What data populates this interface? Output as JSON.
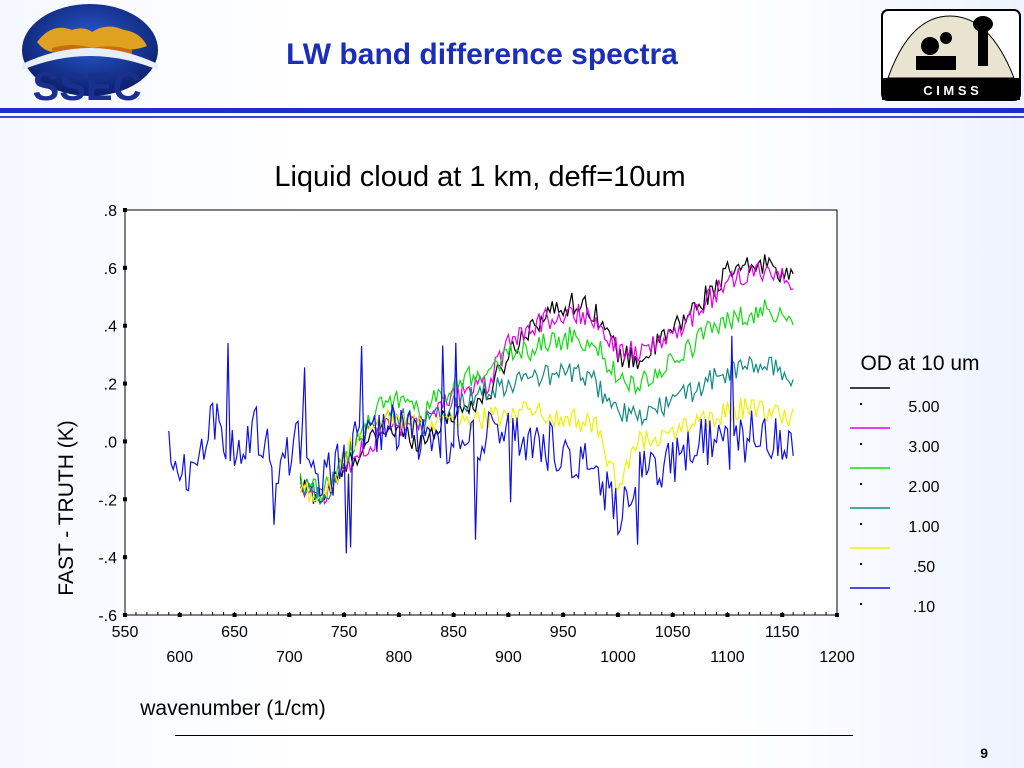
{
  "header": {
    "title": "LW band difference spectra",
    "ssec_logo_text": "SSEC",
    "cimss_logo_text": "C I M S S"
  },
  "footer": {
    "page_number": "9"
  },
  "colors": {
    "title": "#1a2eb8",
    "rule": "#1f2ccf",
    "od_5": "#000000",
    "od_3": "#e600e6",
    "od_2": "#10dd10",
    "od_1": "#138a84",
    "od_05": "#f0f000",
    "od_01": "#1010e0"
  },
  "chart_data": {
    "type": "line",
    "title": "Liquid cloud at 1 km, deff=10um",
    "xlabel": "wavenumber (1/cm)",
    "ylabel": "FAST - TRUTH (K)",
    "xlim": [
      550,
      1200
    ],
    "ylim": [
      -0.6,
      0.8
    ],
    "x_ticks_top_row": [
      "550",
      "650",
      "750",
      "850",
      "950",
      "1050",
      "1150"
    ],
    "x_ticks_bottom_row": [
      "600",
      "700",
      "800",
      "900",
      "1000",
      "1100",
      "1200"
    ],
    "y_ticks": [
      ".8",
      ".6",
      ".4",
      ".2",
      ".0",
      "-.2",
      "-.4",
      "-.6"
    ],
    "legend_title": "OD at 10 um",
    "legend_placement": "right",
    "series": [
      {
        "name": "5.00",
        "color": "#000000",
        "start": 710,
        "x": [
          710,
          730,
          760,
          790,
          820,
          850,
          880,
          900,
          920,
          940,
          960,
          980,
          1000,
          1020,
          1040,
          1060,
          1080,
          1100,
          1120,
          1140,
          1160
        ],
        "y": [
          -0.15,
          -0.2,
          -0.05,
          0.05,
          0.0,
          0.1,
          0.15,
          0.3,
          0.4,
          0.45,
          0.48,
          0.45,
          0.3,
          0.28,
          0.35,
          0.42,
          0.5,
          0.58,
          0.6,
          0.62,
          0.55
        ]
      },
      {
        "name": "3.00",
        "color": "#e600e6",
        "start": 710,
        "x": [
          710,
          730,
          760,
          790,
          820,
          850,
          880,
          900,
          920,
          940,
          960,
          980,
          1000,
          1020,
          1040,
          1060,
          1080,
          1100,
          1120,
          1140,
          1160
        ],
        "y": [
          -0.15,
          -0.2,
          -0.05,
          0.05,
          0.05,
          0.15,
          0.2,
          0.33,
          0.4,
          0.43,
          0.45,
          0.42,
          0.32,
          0.3,
          0.35,
          0.4,
          0.48,
          0.55,
          0.57,
          0.6,
          0.55
        ]
      },
      {
        "name": "2.00",
        "color": "#10dd10",
        "start": 710,
        "x": [
          710,
          730,
          760,
          790,
          820,
          850,
          880,
          900,
          920,
          940,
          960,
          980,
          1000,
          1020,
          1040,
          1060,
          1080,
          1100,
          1120,
          1140,
          1160
        ],
        "y": [
          -0.15,
          -0.18,
          0.0,
          0.15,
          0.1,
          0.2,
          0.25,
          0.3,
          0.32,
          0.35,
          0.36,
          0.33,
          0.22,
          0.2,
          0.25,
          0.3,
          0.38,
          0.42,
          0.44,
          0.46,
          0.4
        ]
      },
      {
        "name": "1.00",
        "color": "#138a84",
        "start": 710,
        "x": [
          710,
          730,
          760,
          790,
          820,
          850,
          880,
          900,
          920,
          940,
          960,
          980,
          1000,
          1020,
          1040,
          1060,
          1080,
          1100,
          1120,
          1140,
          1160
        ],
        "y": [
          -0.15,
          -0.2,
          0.0,
          0.1,
          0.05,
          0.12,
          0.18,
          0.2,
          0.22,
          0.23,
          0.24,
          0.2,
          0.1,
          0.08,
          0.12,
          0.16,
          0.2,
          0.24,
          0.26,
          0.26,
          0.22
        ]
      },
      {
        "name": ".50",
        "color": "#f0f000",
        "start": 710,
        "x": [
          710,
          730,
          760,
          790,
          820,
          850,
          880,
          900,
          920,
          940,
          960,
          980,
          1000,
          1020,
          1040,
          1060,
          1080,
          1100,
          1120,
          1140,
          1160
        ],
        "y": [
          -0.15,
          -0.2,
          0.0,
          0.08,
          0.05,
          0.06,
          0.08,
          0.1,
          0.12,
          0.08,
          0.08,
          0.05,
          -0.15,
          0.0,
          0.03,
          0.05,
          0.08,
          0.1,
          0.12,
          0.1,
          0.08
        ]
      },
      {
        "name": ".10",
        "color": "#1010e0",
        "start": 590,
        "x": [
          590,
          610,
          630,
          650,
          670,
          690,
          710,
          730,
          760,
          790,
          820,
          850,
          880,
          900,
          920,
          940,
          960,
          980,
          1000,
          1020,
          1040,
          1060,
          1080,
          1100,
          1120,
          1140,
          1160
        ],
        "y": [
          0.0,
          -0.1,
          0.1,
          -0.05,
          0.05,
          -0.1,
          0.0,
          -0.15,
          0.0,
          0.05,
          0.0,
          0.0,
          0.02,
          0.05,
          0.0,
          -0.02,
          -0.05,
          -0.08,
          -0.25,
          -0.1,
          -0.1,
          -0.05,
          0.0,
          -0.02,
          0.02,
          0.0,
          -0.05
        ]
      }
    ]
  }
}
